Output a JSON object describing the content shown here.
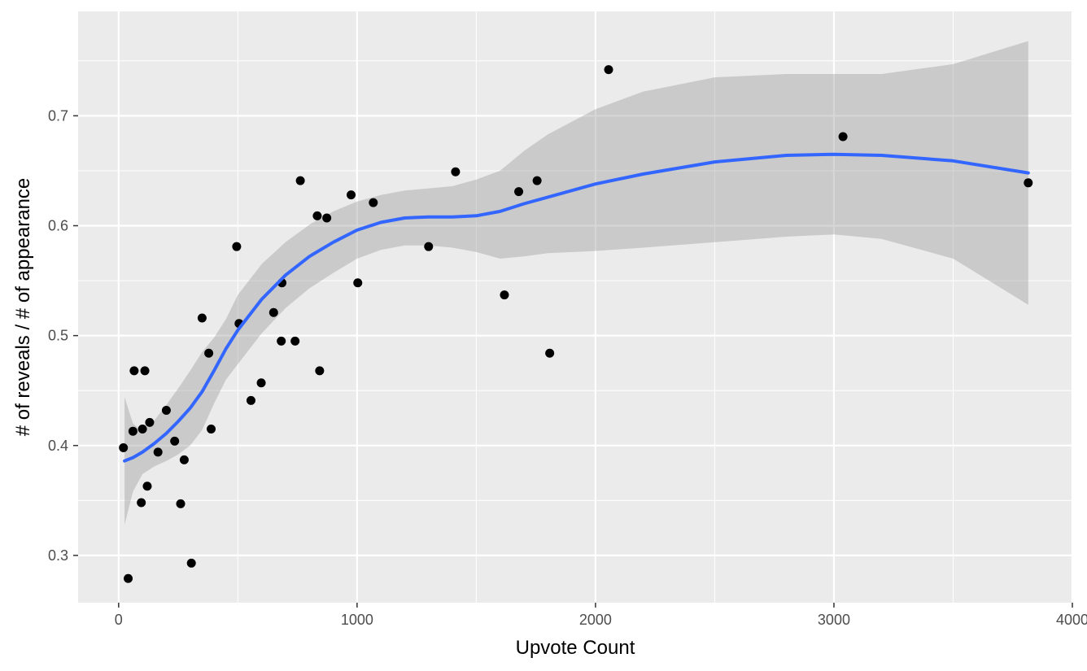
{
  "chart_data": {
    "type": "scatter",
    "title": "",
    "xlabel": "Upvote Count",
    "ylabel": "# of reveals / # of appearance",
    "xlim": [
      -170,
      4000
    ],
    "ylim": [
      0.257,
      0.795
    ],
    "x_ticks": [
      0,
      1000,
      2000,
      3000,
      4000
    ],
    "x_tick_labels": [
      "0",
      "1000",
      "2000",
      "3000",
      "4000"
    ],
    "y_ticks": [
      0.3,
      0.4,
      0.5,
      0.6,
      0.7
    ],
    "y_tick_labels": [
      "0.3",
      "0.4",
      "0.5",
      "0.6",
      "0.7"
    ],
    "grid": true,
    "legend": "none",
    "points": [
      {
        "x": 20,
        "y": 0.398
      },
      {
        "x": 40,
        "y": 0.279
      },
      {
        "x": 60,
        "y": 0.413
      },
      {
        "x": 65,
        "y": 0.468
      },
      {
        "x": 95,
        "y": 0.348
      },
      {
        "x": 100,
        "y": 0.415
      },
      {
        "x": 110,
        "y": 0.468
      },
      {
        "x": 120,
        "y": 0.363
      },
      {
        "x": 130,
        "y": 0.421
      },
      {
        "x": 165,
        "y": 0.394
      },
      {
        "x": 200,
        "y": 0.432
      },
      {
        "x": 235,
        "y": 0.404
      },
      {
        "x": 260,
        "y": 0.347
      },
      {
        "x": 275,
        "y": 0.387
      },
      {
        "x": 305,
        "y": 0.293
      },
      {
        "x": 350,
        "y": 0.516
      },
      {
        "x": 378,
        "y": 0.484
      },
      {
        "x": 388,
        "y": 0.415
      },
      {
        "x": 495,
        "y": 0.581
      },
      {
        "x": 505,
        "y": 0.511
      },
      {
        "x": 555,
        "y": 0.441
      },
      {
        "x": 598,
        "y": 0.457
      },
      {
        "x": 650,
        "y": 0.521
      },
      {
        "x": 682,
        "y": 0.495
      },
      {
        "x": 685,
        "y": 0.548
      },
      {
        "x": 740,
        "y": 0.495
      },
      {
        "x": 762,
        "y": 0.641
      },
      {
        "x": 833,
        "y": 0.609
      },
      {
        "x": 843,
        "y": 0.468
      },
      {
        "x": 873,
        "y": 0.607
      },
      {
        "x": 975,
        "y": 0.628
      },
      {
        "x": 1003,
        "y": 0.548
      },
      {
        "x": 1068,
        "y": 0.621
      },
      {
        "x": 1300,
        "y": 0.581
      },
      {
        "x": 1413,
        "y": 0.649
      },
      {
        "x": 1618,
        "y": 0.537
      },
      {
        "x": 1678,
        "y": 0.631
      },
      {
        "x": 1755,
        "y": 0.641
      },
      {
        "x": 1808,
        "y": 0.484
      },
      {
        "x": 2055,
        "y": 0.742
      },
      {
        "x": 3038,
        "y": 0.681
      },
      {
        "x": 3815,
        "y": 0.639
      }
    ],
    "smooth": {
      "x": [
        25,
        60,
        100,
        150,
        200,
        250,
        300,
        350,
        400,
        450,
        500,
        600,
        700,
        800,
        900,
        1000,
        1100,
        1200,
        1300,
        1400,
        1500,
        1600,
        1700,
        1800,
        2000,
        2200,
        2500,
        2800,
        3000,
        3200,
        3500,
        3815
      ],
      "y": [
        0.386,
        0.389,
        0.394,
        0.402,
        0.411,
        0.422,
        0.434,
        0.449,
        0.468,
        0.488,
        0.505,
        0.533,
        0.555,
        0.572,
        0.585,
        0.596,
        0.603,
        0.607,
        0.608,
        0.608,
        0.609,
        0.613,
        0.62,
        0.626,
        0.638,
        0.647,
        0.658,
        0.664,
        0.665,
        0.664,
        0.659,
        0.648
      ],
      "ymin": [
        0.328,
        0.358,
        0.374,
        0.381,
        0.386,
        0.392,
        0.4,
        0.414,
        0.438,
        0.46,
        0.474,
        0.502,
        0.525,
        0.543,
        0.557,
        0.57,
        0.578,
        0.582,
        0.582,
        0.58,
        0.576,
        0.57,
        0.572,
        0.575,
        0.577,
        0.58,
        0.585,
        0.59,
        0.592,
        0.588,
        0.57,
        0.528
      ],
      "ymax": [
        0.444,
        0.42,
        0.413,
        0.423,
        0.437,
        0.452,
        0.468,
        0.485,
        0.498,
        0.515,
        0.537,
        0.565,
        0.585,
        0.601,
        0.613,
        0.622,
        0.628,
        0.632,
        0.634,
        0.636,
        0.642,
        0.65,
        0.668,
        0.683,
        0.706,
        0.722,
        0.735,
        0.738,
        0.738,
        0.738,
        0.747,
        0.768
      ]
    },
    "colors": {
      "panel": "#ebebeb",
      "grid_major": "#ffffff",
      "point": "#000000",
      "line": "#3366ff",
      "ribbon": "#999999"
    }
  }
}
